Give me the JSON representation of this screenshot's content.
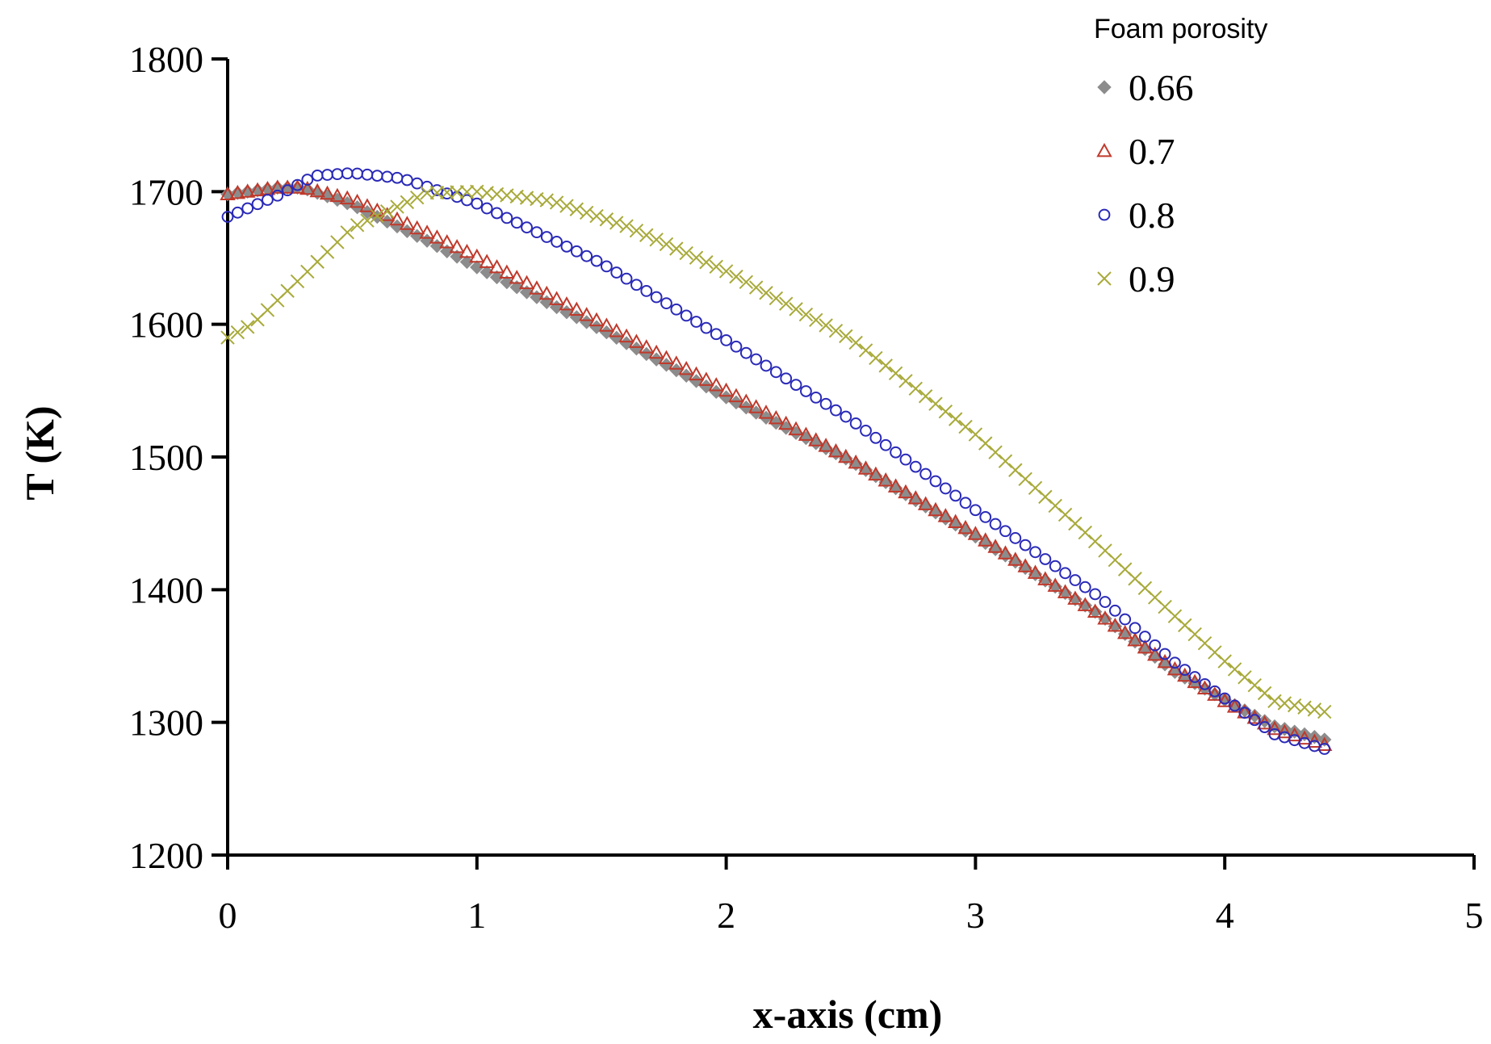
{
  "chart_data": {
    "type": "scatter",
    "xlabel": "x-axis (cm)",
    "ylabel": "T (K)",
    "xlim": [
      0,
      5
    ],
    "ylim": [
      1200,
      1800
    ],
    "x_ticks": [
      "0",
      "1",
      "2",
      "3",
      "4",
      "5"
    ],
    "y_ticks": [
      "1200",
      "1300",
      "1400",
      "1500",
      "1600",
      "1700",
      "1800"
    ],
    "grid": false,
    "legend": {
      "title": "Foam porosity",
      "position": "top-right"
    },
    "series": [
      {
        "name": "0.66",
        "marker": "diamond",
        "color": "#8c8c8c",
        "points": [
          [
            0,
            1698
          ],
          [
            0.2,
            1703
          ],
          [
            0.3,
            1703
          ],
          [
            0.5,
            1690
          ],
          [
            0.8,
            1663
          ],
          [
            1,
            1643
          ],
          [
            1.5,
            1596
          ],
          [
            2,
            1545
          ],
          [
            2.5,
            1497
          ],
          [
            3,
            1440
          ],
          [
            3.5,
            1381
          ],
          [
            3.8,
            1338
          ],
          [
            4,
            1317
          ],
          [
            4.2,
            1297
          ],
          [
            4.4,
            1287
          ]
        ]
      },
      {
        "name": "0.7",
        "marker": "triangle",
        "color": "#c0392b",
        "points": [
          [
            0,
            1698
          ],
          [
            0.2,
            1703
          ],
          [
            0.3,
            1703
          ],
          [
            0.5,
            1694
          ],
          [
            0.8,
            1669
          ],
          [
            1,
            1651
          ],
          [
            1.5,
            1601
          ],
          [
            2,
            1550
          ],
          [
            2.5,
            1498
          ],
          [
            3,
            1442
          ],
          [
            3.5,
            1381
          ],
          [
            3.8,
            1340
          ],
          [
            4,
            1316
          ],
          [
            4.2,
            1295
          ],
          [
            4.4,
            1283
          ]
        ]
      },
      {
        "name": "0.8",
        "marker": "circle",
        "color": "#2a2ab8",
        "points": [
          [
            0,
            1681
          ],
          [
            0.2,
            1697
          ],
          [
            0.35,
            1712
          ],
          [
            0.5,
            1714
          ],
          [
            0.7,
            1710
          ],
          [
            1,
            1691
          ],
          [
            1.5,
            1646
          ],
          [
            2,
            1588
          ],
          [
            2.5,
            1528
          ],
          [
            3,
            1460
          ],
          [
            3.5,
            1394
          ],
          [
            3.8,
            1345
          ],
          [
            4,
            1318
          ],
          [
            4.2,
            1291
          ],
          [
            4.4,
            1280
          ]
        ]
      },
      {
        "name": "0.9",
        "marker": "x",
        "color": "#a8aa3a",
        "points": [
          [
            0,
            1590
          ],
          [
            0.1,
            1600
          ],
          [
            0.3,
            1636
          ],
          [
            0.5,
            1673
          ],
          [
            0.8,
            1699
          ],
          [
            1,
            1700
          ],
          [
            1.3,
            1693
          ],
          [
            1.6,
            1674
          ],
          [
            2,
            1640
          ],
          [
            2.5,
            1589
          ],
          [
            3,
            1517
          ],
          [
            3.5,
            1433
          ],
          [
            3.8,
            1380
          ],
          [
            4,
            1346
          ],
          [
            4.2,
            1316
          ],
          [
            4.4,
            1308
          ]
        ]
      }
    ]
  }
}
